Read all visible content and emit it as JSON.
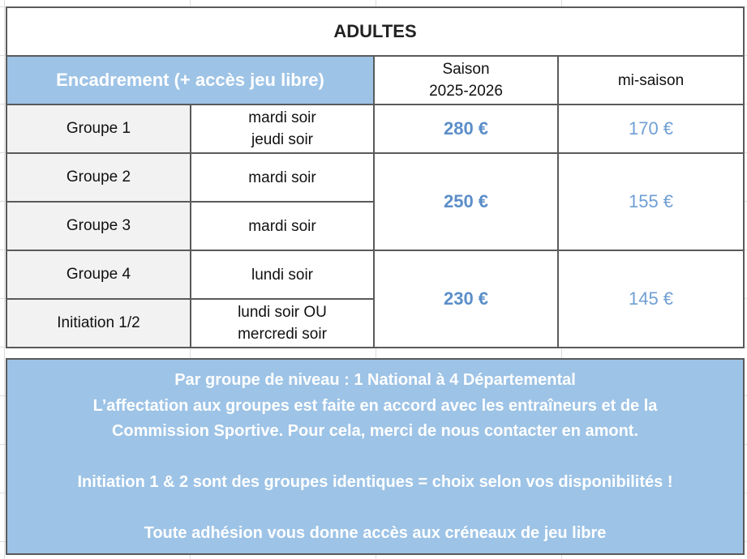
{
  "table": {
    "title": "ADULTES",
    "header": {
      "main": "Encadrement (+ accès jeu libre)",
      "season_line1": "Saison",
      "season_line2": "2025-2026",
      "mid_season": "mi-saison"
    },
    "rows": [
      {
        "group": "Groupe 1",
        "day1": "mardi soir",
        "day2": "jeudi soir"
      },
      {
        "group": "Groupe 2",
        "day1": "mardi soir",
        "day2": ""
      },
      {
        "group": "Groupe 3",
        "day1": "mardi soir",
        "day2": ""
      },
      {
        "group": "Groupe 4",
        "day1": "lundi soir",
        "day2": ""
      },
      {
        "group": "Initiation 1/2",
        "day1": "lundi soir OU",
        "day2": "mercredi soir"
      }
    ],
    "prices": [
      {
        "season": "280 €",
        "mid": "170 €"
      },
      {
        "season": "250 €",
        "mid": "155 €"
      },
      {
        "season": "230 €",
        "mid": "145 €"
      }
    ]
  },
  "notes": {
    "line1": "Par groupe de niveau : 1 National à 4 Départemental",
    "line2": "L’affectation aux groupes est faite en accord avec les entraîneurs et de la",
    "line3": "Commission Sportive. Pour cela, merci de nous contacter en amont.",
    "line4": "Initiation 1 & 2 sont des groupes identiques = choix selon vos disponibilités !",
    "line5": "Toute adhésion vous donne accès aux créneaux de jeu libre"
  }
}
